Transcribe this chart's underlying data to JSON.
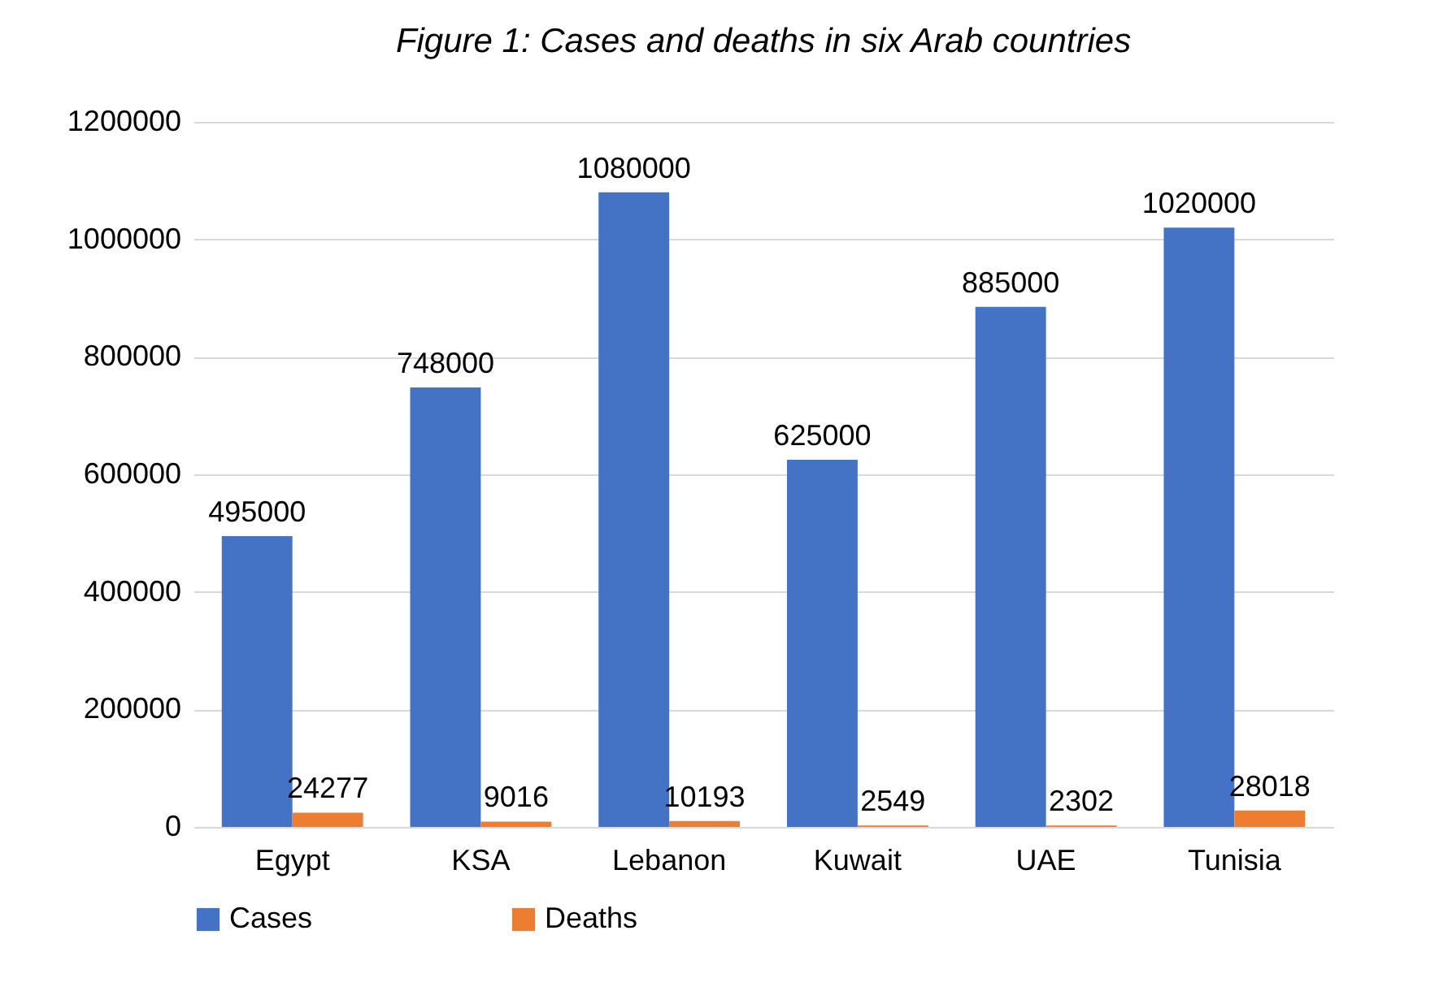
{
  "chart_data": {
    "type": "bar",
    "title": "Figure 1: Cases and deaths in six Arab countries",
    "categories": [
      "Egypt",
      "KSA",
      "Lebanon",
      "Kuwait",
      "UAE",
      "Tunisia"
    ],
    "series": [
      {
        "name": "Cases",
        "color": "#4472c4",
        "values": [
          495000,
          748000,
          1080000,
          625000,
          885000,
          1020000
        ]
      },
      {
        "name": "Deaths",
        "color": "#ed7d31",
        "values": [
          24277,
          9016,
          10193,
          2549,
          2302,
          28018
        ]
      }
    ],
    "ylim": [
      0,
      1200000
    ],
    "yticks": [
      0,
      200000,
      400000,
      600000,
      800000,
      1000000,
      1200000
    ],
    "grid": "y",
    "legend": "bottom",
    "data_labels": true
  }
}
